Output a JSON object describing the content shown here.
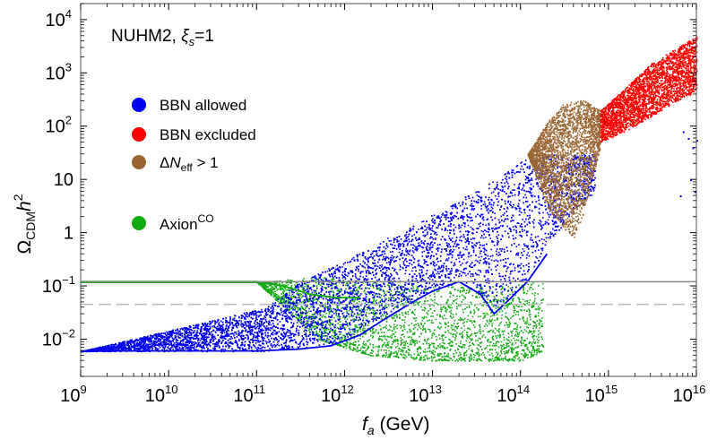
{
  "chart_data": {
    "type": "scatter",
    "title": "",
    "annotation": {
      "prefix": "NUHM2, ",
      "symbol": "ξ",
      "subscript": "s",
      "suffix": "=1"
    },
    "xlabel": {
      "symbol": "f",
      "subscript": "a",
      "unit": " (GeV)"
    },
    "ylabel": {
      "symbol": "Ω",
      "subscript": "CDM",
      "middle": "h",
      "superscript": "2"
    },
    "x_scale": "log",
    "y_scale": "log",
    "xlim": [
      1000000000.0,
      1e+16
    ],
    "ylim": [
      0.002,
      20000
    ],
    "x_ticks": [
      {
        "base": "10",
        "exp": "9",
        "value": 1000000000.0
      },
      {
        "base": "10",
        "exp": "10",
        "value": 10000000000.0
      },
      {
        "base": "10",
        "exp": "11",
        "value": 100000000000.0
      },
      {
        "base": "10",
        "exp": "12",
        "value": 1000000000000.0
      },
      {
        "base": "10",
        "exp": "13",
        "value": 10000000000000.0
      },
      {
        "base": "10",
        "exp": "14",
        "value": 100000000000000.0
      },
      {
        "base": "10",
        "exp": "15",
        "value": 1000000000000000.0
      },
      {
        "base": "10",
        "exp": "16",
        "value": 1e+16
      }
    ],
    "y_ticks": [
      {
        "base": "10",
        "exp": "−2",
        "value": 0.01
      },
      {
        "base": "10",
        "exp": "−1",
        "value": 0.1
      },
      {
        "base": "1",
        "exp": "",
        "value": 1
      },
      {
        "base": "10",
        "exp": "",
        "value": 10
      },
      {
        "base": "10",
        "exp": "2",
        "value": 100
      },
      {
        "base": "10",
        "exp": "3",
        "value": 1000
      },
      {
        "base": "10",
        "exp": "4",
        "value": 10000
      }
    ],
    "legend": [
      {
        "label": "BBN allowed",
        "color": "#0000ee",
        "kind": "plain"
      },
      {
        "label": "BBN excluded",
        "color": "#ff0000",
        "kind": "plain"
      },
      {
        "label": "ΔN_eff > 1",
        "parts": {
          "pre": "Δ",
          "sym": "N",
          "sub": "eff",
          "post": " > 1"
        },
        "color": "#996633",
        "kind": "neff"
      },
      {
        "label": "Axion^CO",
        "parts": {
          "pre": "Axion",
          "sup": "CO"
        },
        "color": "#11aa11",
        "kind": "axion"
      }
    ],
    "legend_placement": "upper-left",
    "reference_lines": [
      {
        "name": "planck-observed-relic",
        "y": 0.12,
        "style": "solid",
        "color": "#888888"
      },
      {
        "name": "reference-dashed",
        "y": 0.045,
        "style": "dashed",
        "color": "#bbbbbb"
      }
    ],
    "series": [
      {
        "group": "BBN allowed",
        "color": "#0000ee",
        "region_lower": [
          [
            1000000000.0,
            0.006
          ],
          [
            100000000000.0,
            0.006
          ],
          [
            140000000000.0,
            0.0062
          ],
          [
            200000000000.0,
            0.0064
          ],
          [
            300000000000.0,
            0.0068
          ],
          [
            500000000000.0,
            0.0073
          ],
          [
            800000000000.0,
            0.0085
          ],
          [
            1200000000000.0,
            0.012
          ],
          [
            2000000000000.0,
            0.02
          ],
          [
            4000000000000.0,
            0.04
          ],
          [
            8000000000000.0,
            0.07
          ],
          [
            20000000000000.0,
            0.12
          ],
          [
            35000000000000.0,
            0.07
          ],
          [
            50000000000000.0,
            0.04
          ],
          [
            70000000000000.0,
            0.06
          ],
          [
            120000000000000.0,
            0.12
          ],
          [
            200000000000000.0,
            0.6
          ],
          [
            400000000000000.0,
            2.5
          ],
          [
            700000000000000.0,
            6
          ]
        ],
        "region_upper": [
          [
            1000000000.0,
            0.006
          ],
          [
            130000000000.0,
            0.04
          ],
          [
            300000000000.0,
            0.12
          ],
          [
            1000000000000.0,
            0.3
          ],
          [
            3000000000000.0,
            0.8
          ],
          [
            10000000000000.0,
            2.2
          ],
          [
            30000000000000.0,
            6
          ],
          [
            60000000000000.0,
            12
          ],
          [
            100000000000000.0,
            22
          ],
          [
            150000000000000.0,
            30
          ]
        ],
        "sparse_points": [
          [
            7000000000000000.0,
            80
          ],
          [
            8000000000000000.0,
            60
          ],
          [
            9000000000000000.0,
            40
          ],
          [
            1e+16,
            55
          ],
          [
            8500000000000000.0,
            10
          ],
          [
            9500000000000000.0,
            6
          ],
          [
            1.2e+16,
            20
          ],
          [
            6500000000000000.0,
            5
          ],
          [
            1.1e+16,
            40
          ]
        ]
      },
      {
        "group": "BBN excluded",
        "color": "#ff0000",
        "region_lower": [
          [
            800000000000000.0,
            50
          ],
          [
            1500000000000000.0,
            80
          ],
          [
            3000000000000000.0,
            150
          ],
          [
            6000000000000000.0,
            300
          ],
          [
            1e+16,
            450
          ]
        ],
        "region_upper": [
          [
            800000000000000.0,
            200
          ],
          [
            1500000000000000.0,
            500
          ],
          [
            3000000000000000.0,
            1500
          ],
          [
            6000000000000000.0,
            3000
          ],
          [
            1e+16,
            5000
          ]
        ]
      },
      {
        "group": "ΔN_eff > 1",
        "color": "#996633",
        "region_lower": [
          [
            120000000000000.0,
            30
          ],
          [
            200000000000000.0,
            3
          ],
          [
            300000000000000.0,
            1.2
          ],
          [
            400000000000000.0,
            0.8
          ],
          [
            500000000000000.0,
            2
          ],
          [
            800000000000000.0,
            40
          ]
        ],
        "region_upper": [
          [
            120000000000000.0,
            30
          ],
          [
            200000000000000.0,
            120
          ],
          [
            300000000000000.0,
            260
          ],
          [
            500000000000000.0,
            330
          ],
          [
            800000000000000.0,
            200
          ]
        ]
      },
      {
        "group": "Axion^CO",
        "color": "#11aa11",
        "region_lower": [
          [
            1000000000.0,
            0.12
          ],
          [
            100000000000.0,
            0.12
          ],
          [
            500000000000.0,
            0.01
          ],
          [
            2000000000000.0,
            0.005
          ],
          [
            10000000000000.0,
            0.004
          ],
          [
            100000000000000.0,
            0.004
          ],
          [
            180000000000000.0,
            0.006
          ]
        ],
        "region_upper": [
          [
            1000000000.0,
            0.12
          ],
          [
            100000000000.0,
            0.12
          ],
          [
            500000000000.0,
            0.15
          ],
          [
            2000000000000.0,
            0.12
          ],
          [
            10000000000000.0,
            0.1
          ],
          [
            50000000000000.0,
            0.1
          ],
          [
            150000000000000.0,
            0.12
          ]
        ]
      }
    ],
    "curves": [
      {
        "name": "blue-boundary-curve",
        "color": "#0000ee",
        "points": [
          [
            1000000000.0,
            0.006
          ],
          [
            100000000000.0,
            0.006
          ],
          [
            300000000000.0,
            0.0065
          ],
          [
            700000000000.0,
            0.0075
          ],
          [
            1500000000000.0,
            0.012
          ],
          [
            3000000000000.0,
            0.025
          ],
          [
            6000000000000.0,
            0.05
          ],
          [
            10000000000000.0,
            0.08
          ],
          [
            20000000000000.0,
            0.12
          ],
          [
            35000000000000.0,
            0.07
          ],
          [
            50000000000000.0,
            0.03
          ],
          [
            70000000000000.0,
            0.05
          ],
          [
            120000000000000.0,
            0.12
          ],
          [
            200000000000000.0,
            0.4
          ]
        ]
      },
      {
        "name": "green-boundary-curve",
        "color": "#11aa11",
        "points": [
          [
            1000000000.0,
            0.12
          ],
          [
            100000000000.0,
            0.12
          ],
          [
            200000000000.0,
            0.1
          ],
          [
            400000000000.0,
            0.07
          ],
          [
            800000000000.0,
            0.06
          ],
          [
            1500000000000.0,
            0.06
          ]
        ]
      }
    ]
  }
}
